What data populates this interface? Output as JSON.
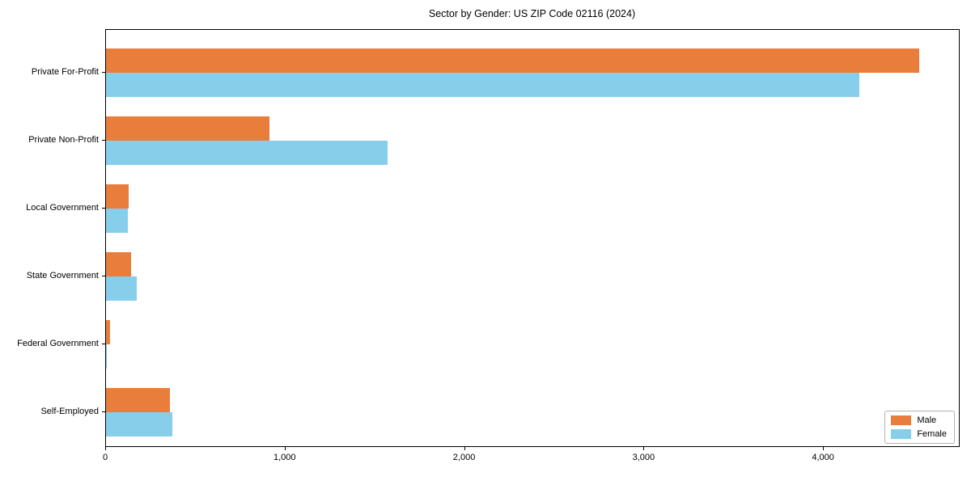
{
  "chart_data": {
    "type": "bar",
    "orientation": "horizontal",
    "title": "Sector by Gender: US ZIP Code 02116 (2024)",
    "categories": [
      "Private For-Profit",
      "Private Non-Profit",
      "Local Government",
      "State Government",
      "Federal Government",
      "Self-Employed"
    ],
    "series": [
      {
        "name": "Male",
        "color": "#e87d3c",
        "values": [
          4530,
          910,
          128,
          138,
          23,
          358
        ]
      },
      {
        "name": "Female",
        "color": "#87ceeb",
        "values": [
          4200,
          1570,
          120,
          173,
          4,
          368
        ]
      }
    ],
    "xlim": [
      0,
      4757
    ],
    "x_ticks": [
      0,
      1000,
      2000,
      3000,
      4000
    ],
    "x_tick_labels": [
      "0",
      "1,000",
      "2,000",
      "3,000",
      "4,000"
    ],
    "xlabel": "",
    "ylabel": "",
    "grid": false,
    "legend_position": "lower right"
  },
  "legend": {
    "items": [
      {
        "label": "Male",
        "color": "#e87d3c"
      },
      {
        "label": "Female",
        "color": "#87ceeb"
      }
    ]
  }
}
